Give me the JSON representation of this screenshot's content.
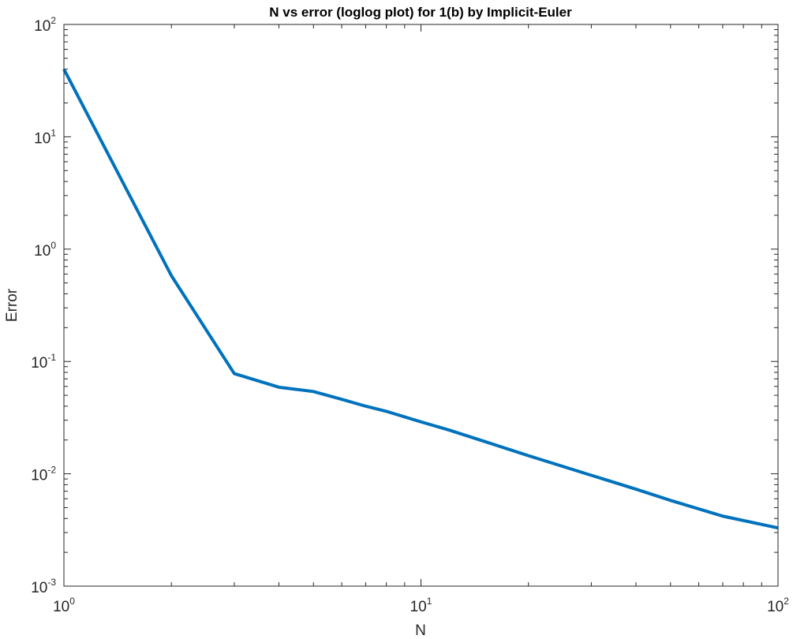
{
  "chart_data": {
    "type": "line",
    "title": "N vs error (loglog plot) for 1(b) by Implicit-Euler",
    "xlabel": "N",
    "ylabel": "Error",
    "xscale": "log",
    "yscale": "log",
    "xlim": [
      1,
      100
    ],
    "ylim": [
      0.001,
      100
    ],
    "grid": false,
    "legend": "none",
    "x_ticks": [
      {
        "base": "10",
        "exp": "0",
        "value": 1
      },
      {
        "base": "10",
        "exp": "1",
        "value": 10
      },
      {
        "base": "10",
        "exp": "2",
        "value": 100
      }
    ],
    "y_ticks": [
      {
        "base": "10",
        "exp": "-3",
        "value": 0.001
      },
      {
        "base": "10",
        "exp": "-2",
        "value": 0.01
      },
      {
        "base": "10",
        "exp": "-1",
        "value": 0.1
      },
      {
        "base": "10",
        "exp": "0",
        "value": 1
      },
      {
        "base": "10",
        "exp": "1",
        "value": 10
      },
      {
        "base": "10",
        "exp": "2",
        "value": 100
      }
    ],
    "series": [
      {
        "color": "#0072bd",
        "x": [
          1,
          2,
          3,
          4,
          5,
          6,
          7,
          8,
          10,
          12,
          15,
          20,
          30,
          40,
          50,
          70,
          100
        ],
        "y": [
          40,
          0.58,
          0.078,
          0.059,
          0.054,
          0.046,
          0.04,
          0.036,
          0.029,
          0.0245,
          0.0195,
          0.0145,
          0.0097,
          0.0073,
          0.0058,
          0.0042,
          0.0033
        ]
      }
    ],
    "colors": {
      "axis": "#262626",
      "background": "#ffffff",
      "line": "#0072bd"
    }
  }
}
